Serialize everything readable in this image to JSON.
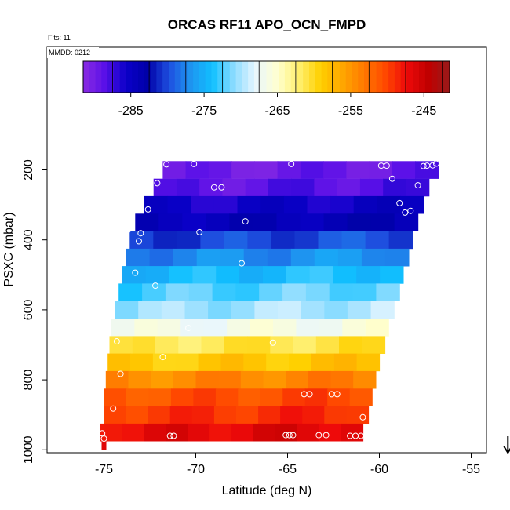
{
  "chart_data": {
    "type": "heatmap",
    "title": "ORCAS RF11 APO_OCN_FMPD",
    "flights_label": "Flts: 11",
    "mmdd_label": "MMDD: 0212",
    "xlabel": "Latitude (deg N)",
    "ylabel": "PSXC (mbar)",
    "xlim": [
      -76.0,
      -52.5
    ],
    "ylim": [
      1000,
      0
    ],
    "x_ticks": [
      -75,
      -70,
      -65,
      -60,
      -55
    ],
    "x_tick_labels": [
      "-75",
      "-70",
      "-65",
      "-60",
      "-55"
    ],
    "y_ticks": [
      200,
      400,
      600,
      800,
      1000
    ],
    "y_tick_labels": [
      "200",
      "400",
      "600",
      "800",
      "1000"
    ],
    "colorbar": {
      "min": -291.5,
      "max": -241.5,
      "ticks": [
        -285,
        -275,
        -265,
        -255,
        -245
      ],
      "tick_labels": [
        "-285",
        "-275",
        "-265",
        "-255",
        "-245"
      ],
      "colors": [
        "#8a2be2",
        "#5a10e8",
        "#0a00c8",
        "#0000a8",
        "#1e50e0",
        "#1e96f0",
        "#10c0ff",
        "#8cdcff",
        "#e8f6ff",
        "#ffffd0",
        "#fff070",
        "#ffd000",
        "#ffa800",
        "#ff7a00",
        "#ff4a00",
        "#ee0a0a",
        "#c00000",
        "#9a1a1a"
      ]
    },
    "bands": [
      {
        "p_top": 175,
        "p_bottom": 225,
        "lat_min": -71.8,
        "lat_max": -56.8,
        "value": -289.5
      },
      {
        "p_top": 225,
        "p_bottom": 275,
        "lat_min": -72.3,
        "lat_max": -57.3,
        "value": -288.5
      },
      {
        "p_top": 275,
        "p_bottom": 325,
        "lat_min": -72.8,
        "lat_max": -57.6,
        "value": -285.5
      },
      {
        "p_top": 325,
        "p_bottom": 375,
        "lat_min": -73.3,
        "lat_max": -57.9,
        "value": -284.0
      },
      {
        "p_top": 375,
        "p_bottom": 425,
        "lat_min": -73.6,
        "lat_max": -58.2,
        "value": -280.0
      },
      {
        "p_top": 425,
        "p_bottom": 475,
        "lat_min": -73.8,
        "lat_max": -58.4,
        "value": -277.0
      },
      {
        "p_top": 475,
        "p_bottom": 525,
        "lat_min": -74.0,
        "lat_max": -58.7,
        "value": -274.0
      },
      {
        "p_top": 525,
        "p_bottom": 575,
        "lat_min": -74.2,
        "lat_max": -58.9,
        "value": -272.0
      },
      {
        "p_top": 575,
        "p_bottom": 625,
        "lat_min": -74.4,
        "lat_max": -59.2,
        "value": -270.0
      },
      {
        "p_top": 625,
        "p_bottom": 675,
        "lat_min": -74.6,
        "lat_max": -59.5,
        "value": -266.5
      },
      {
        "p_top": 675,
        "p_bottom": 725,
        "lat_min": -74.7,
        "lat_max": -59.7,
        "value": -261.0
      },
      {
        "p_top": 725,
        "p_bottom": 775,
        "lat_min": -74.8,
        "lat_max": -60.0,
        "value": -258.5
      },
      {
        "p_top": 775,
        "p_bottom": 825,
        "lat_min": -74.9,
        "lat_max": -60.2,
        "value": -254.0
      },
      {
        "p_top": 825,
        "p_bottom": 875,
        "lat_min": -75.0,
        "lat_max": -60.4,
        "value": -250.5
      },
      {
        "p_top": 875,
        "p_bottom": 925,
        "lat_min": -75.0,
        "lat_max": -60.6,
        "value": -249.0
      },
      {
        "p_top": 925,
        "p_bottom": 975,
        "lat_min": -75.2,
        "lat_max": -60.9,
        "value": -246.5
      }
    ],
    "samples": [
      {
        "lat": -71.6,
        "p": 184
      },
      {
        "lat": -70.1,
        "p": 183
      },
      {
        "lat": -64.8,
        "p": 183
      },
      {
        "lat": -59.9,
        "p": 188
      },
      {
        "lat": -59.6,
        "p": 188
      },
      {
        "lat": -57.6,
        "p": 189
      },
      {
        "lat": -57.4,
        "p": 188
      },
      {
        "lat": -57.1,
        "p": 187
      },
      {
        "lat": -56.9,
        "p": 182
      },
      {
        "lat": -72.1,
        "p": 238
      },
      {
        "lat": -69.0,
        "p": 250
      },
      {
        "lat": -68.6,
        "p": 250
      },
      {
        "lat": -59.3,
        "p": 225
      },
      {
        "lat": -57.9,
        "p": 244
      },
      {
        "lat": -58.9,
        "p": 295
      },
      {
        "lat": -58.6,
        "p": 322
      },
      {
        "lat": -58.3,
        "p": 317
      },
      {
        "lat": -72.6,
        "p": 313
      },
      {
        "lat": -73.4,
        "p": 318
      },
      {
        "lat": -67.3,
        "p": 347
      },
      {
        "lat": -73.7,
        "p": 372
      },
      {
        "lat": -73.0,
        "p": 381
      },
      {
        "lat": -69.8,
        "p": 378
      },
      {
        "lat": -73.1,
        "p": 404
      },
      {
        "lat": -67.5,
        "p": 467
      },
      {
        "lat": -73.3,
        "p": 494
      },
      {
        "lat": -72.2,
        "p": 531
      },
      {
        "lat": -70.4,
        "p": 652
      },
      {
        "lat": -65.8,
        "p": 694
      },
      {
        "lat": -74.3,
        "p": 690
      },
      {
        "lat": -71.8,
        "p": 735
      },
      {
        "lat": -74.1,
        "p": 783
      },
      {
        "lat": -64.1,
        "p": 841
      },
      {
        "lat": -63.8,
        "p": 841
      },
      {
        "lat": -62.6,
        "p": 841
      },
      {
        "lat": -62.3,
        "p": 841
      },
      {
        "lat": -74.5,
        "p": 882
      },
      {
        "lat": -60.9,
        "p": 907
      },
      {
        "lat": -75.1,
        "p": 953
      },
      {
        "lat": -75.0,
        "p": 968
      },
      {
        "lat": -71.4,
        "p": 960
      },
      {
        "lat": -71.2,
        "p": 960
      },
      {
        "lat": -65.1,
        "p": 958
      },
      {
        "lat": -64.9,
        "p": 958
      },
      {
        "lat": -64.7,
        "p": 958
      },
      {
        "lat": -63.3,
        "p": 958
      },
      {
        "lat": -62.9,
        "p": 958
      },
      {
        "lat": -61.6,
        "p": 960
      },
      {
        "lat": -61.3,
        "p": 960
      },
      {
        "lat": -61.0,
        "p": 960
      }
    ],
    "extra_profile": {
      "lat": -75.0,
      "p_top": 975,
      "p_bottom": 1000
    },
    "direction_arrow": {
      "lat": -53.0,
      "direction": "down"
    },
    "legend": "none",
    "grid": false
  }
}
